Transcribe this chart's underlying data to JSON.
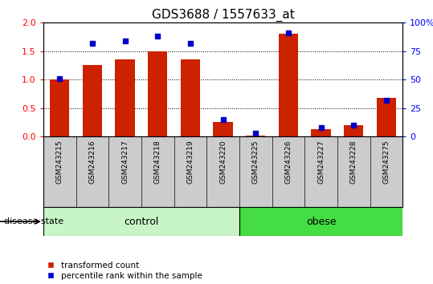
{
  "title": "GDS3688 / 1557633_at",
  "samples": [
    "GSM243215",
    "GSM243216",
    "GSM243217",
    "GSM243218",
    "GSM243219",
    "GSM243220",
    "GSM243225",
    "GSM243226",
    "GSM243227",
    "GSM243228",
    "GSM243275"
  ],
  "transformed_count": [
    1.0,
    1.25,
    1.35,
    1.5,
    1.35,
    0.25,
    0.02,
    1.8,
    0.12,
    0.2,
    0.68
  ],
  "percentile_rank": [
    51,
    82,
    84,
    88,
    82,
    15,
    3,
    91,
    8,
    10,
    32
  ],
  "groups": [
    {
      "label": "control",
      "start": 0,
      "end": 6,
      "color": "#c8f5c8"
    },
    {
      "label": "obese",
      "start": 6,
      "end": 11,
      "color": "#44dd44"
    }
  ],
  "ylim_left": [
    0,
    2
  ],
  "ylim_right": [
    0,
    100
  ],
  "yticks_left": [
    0,
    0.5,
    1.0,
    1.5,
    2.0
  ],
  "yticks_right": [
    0,
    25,
    50,
    75,
    100
  ],
  "bar_color": "#cc2200",
  "dot_color": "#0000cc",
  "bg_color": "#cccccc",
  "title_fontsize": 11,
  "label_fontsize": 6.5,
  "tick_fontsize": 8,
  "legend_items": [
    "transformed count",
    "percentile rank within the sample"
  ],
  "legend_colors": [
    "#cc2200",
    "#0000cc"
  ],
  "disease_state_label": "disease state"
}
